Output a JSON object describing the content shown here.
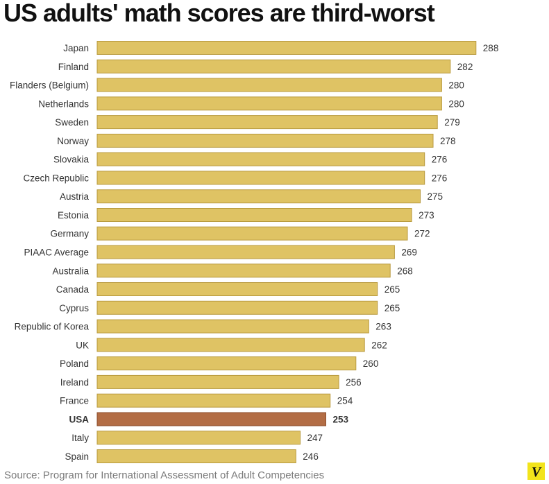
{
  "title": "US adults' math scores are third-worst",
  "source": "Source: Program for International Assessment of Adult Competencies",
  "logo_text": "V",
  "colors": {
    "bar": "#dfc364",
    "bar_stroke": "#b89a3e",
    "highlight": "#b36d45",
    "highlight_stroke": "#8c4e2e",
    "text": "#333333"
  },
  "chart_data": {
    "type": "bar",
    "orientation": "horizontal",
    "categories": [
      "Japan",
      "Finland",
      "Flanders (Belgium)",
      "Netherlands",
      "Sweden",
      "Norway",
      "Slovakia",
      "Czech Republic",
      "Austria",
      "Estonia",
      "Germany",
      "PIAAC Average",
      "Australia",
      "Canada",
      "Cyprus",
      "Republic of Korea",
      "UK",
      "Poland",
      "Ireland",
      "France",
      "USA",
      "Italy",
      "Spain"
    ],
    "values": [
      288,
      282,
      280,
      280,
      279,
      278,
      276,
      276,
      275,
      273,
      272,
      269,
      268,
      265,
      265,
      263,
      262,
      260,
      256,
      254,
      253,
      247,
      246
    ],
    "highlight": "USA",
    "title": "US adults' math scores are third-worst",
    "xlabel": "",
    "ylabel": "",
    "grid": false
  }
}
